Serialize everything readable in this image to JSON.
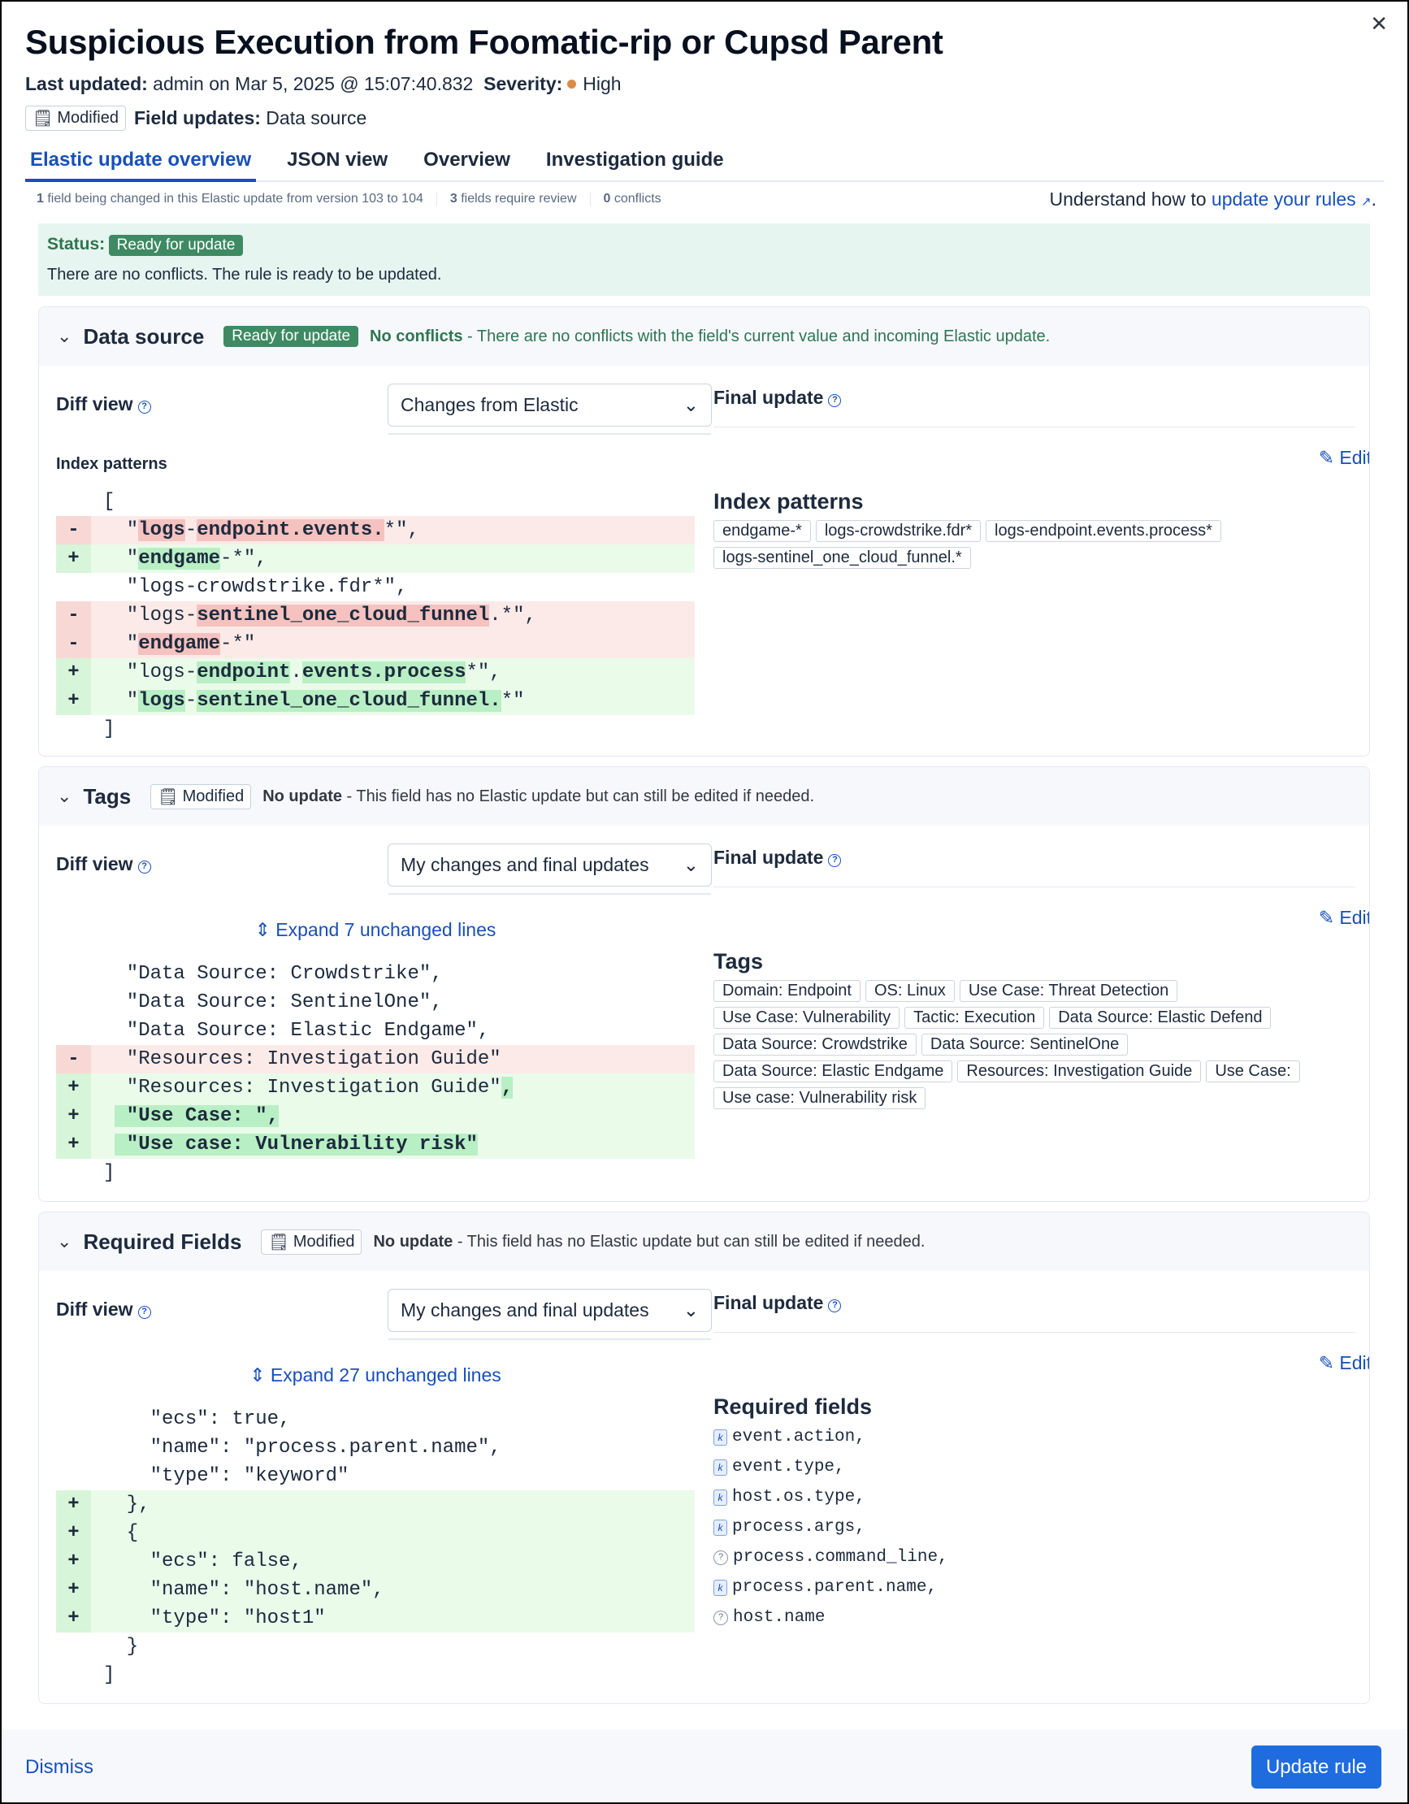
{
  "header": {
    "title": "Suspicious Execution from Foomatic-rip or Cupsd Parent",
    "last_updated_label": "Last updated:",
    "last_updated_value": "admin on Mar 5, 2025 @ 15:07:40.832",
    "severity_label": "Severity:",
    "severity_value": "High",
    "severity_color": "#da8b45",
    "modified_badge": "Modified",
    "field_updates_label": "Field updates:",
    "field_updates_value": "Data source"
  },
  "tabs": [
    {
      "label": "Elastic update overview",
      "active": true
    },
    {
      "label": "JSON view"
    },
    {
      "label": "Overview"
    },
    {
      "label": "Investigation guide"
    }
  ],
  "stats": {
    "changed_count": "1",
    "changed_text": " field being changed in this Elastic update from version 103 to 104",
    "review_count": "3",
    "review_text": " fields require review",
    "conflicts_count": "0",
    "conflicts_text": " conflicts",
    "learn_prefix": "Understand how to ",
    "learn_link": "update your rules"
  },
  "status": {
    "label": "Status:",
    "badge": "Ready for update",
    "message": "There are no conflicts. The rule is ready to be updated."
  },
  "panels": [
    {
      "name": "Data source",
      "badge": "Ready for update",
      "state": "No conflicts",
      "desc": " - There are no conflicts with the field's current value and incoming Elastic update.",
      "diff_label": "Diff view",
      "select": "Changes from Elastic",
      "final_label": "Final update",
      "edit": "Edit",
      "subtitle": "Index patterns",
      "right_title": "Index patterns",
      "lines": [
        {
          "s": "",
          "t": [
            [
              "[",
              ""
            ]
          ]
        },
        {
          "s": "-",
          "t": [
            [
              "  \"",
              ""
            ],
            [
              "logs",
              "d"
            ],
            [
              "-",
              ""
            ],
            [
              "endpoint.events.",
              "d"
            ],
            [
              "*\",",
              ""
            ]
          ]
        },
        {
          "s": "+",
          "t": [
            [
              "  \"",
              ""
            ],
            [
              "endgame",
              "a"
            ],
            [
              "-*\",",
              ""
            ]
          ]
        },
        {
          "s": "",
          "t": [
            [
              "  \"logs-crowdstrike.fdr*\",",
              ""
            ]
          ]
        },
        {
          "s": "-",
          "t": [
            [
              "  \"logs-",
              ""
            ],
            [
              "sentinel_one_cloud_funnel",
              "d"
            ],
            [
              ".*\",",
              ""
            ]
          ]
        },
        {
          "s": "-",
          "t": [
            [
              "  \"",
              ""
            ],
            [
              "endgame",
              "d"
            ],
            [
              "-*\"",
              ""
            ]
          ]
        },
        {
          "s": "+",
          "t": [
            [
              "  \"logs-",
              ""
            ],
            [
              "endpoint",
              "a"
            ],
            [
              ".",
              ""
            ],
            [
              "events.process",
              "a"
            ],
            [
              "*\",",
              ""
            ]
          ]
        },
        {
          "s": "+",
          "t": [
            [
              "  \"",
              ""
            ],
            [
              "logs",
              "a"
            ],
            [
              "-",
              ""
            ],
            [
              "sentinel_one_cloud_funnel.",
              "a"
            ],
            [
              "*\"",
              ""
            ]
          ]
        },
        {
          "s": "",
          "t": [
            [
              "]",
              ""
            ]
          ]
        }
      ],
      "values": [
        "endgame-*",
        "logs-crowdstrike.fdr*",
        "logs-endpoint.events.process*",
        "logs-sentinel_one_cloud_funnel.*"
      ]
    },
    {
      "name": "Tags",
      "modified": "Modified",
      "state": "No update",
      "desc": " - This field has no Elastic update but can still be edited if needed.",
      "diff_label": "Diff view",
      "select": "My changes and final updates",
      "final_label": "Final update",
      "edit": "Edit",
      "expand": "Expand 7 unchanged lines",
      "right_title": "Tags",
      "lines": [
        {
          "s": "",
          "t": [
            [
              "  \"Data Source: Crowdstrike\",",
              ""
            ]
          ]
        },
        {
          "s": "",
          "t": [
            [
              "  \"Data Source: SentinelOne\",",
              ""
            ]
          ]
        },
        {
          "s": "",
          "t": [
            [
              "  \"Data Source: Elastic Endgame\",",
              ""
            ]
          ]
        },
        {
          "s": "-",
          "t": [
            [
              "  \"Resources: Investigation Guide\"",
              ""
            ]
          ]
        },
        {
          "s": "+",
          "t": [
            [
              "  \"Resources: Investigation Guide\"",
              ""
            ],
            [
              ",",
              "a"
            ]
          ]
        },
        {
          "s": "+",
          "t": [
            [
              " ",
              ""
            ],
            [
              " \"Use Case: \",",
              "a"
            ]
          ]
        },
        {
          "s": "+",
          "t": [
            [
              " ",
              ""
            ],
            [
              " \"Use case: Vulnerability risk\"",
              "a"
            ]
          ]
        },
        {
          "s": "",
          "t": [
            [
              "]",
              ""
            ]
          ]
        }
      ],
      "values": [
        "Domain: Endpoint",
        "OS: Linux",
        "Use Case: Threat Detection",
        "Use Case: Vulnerability",
        "Tactic: Execution",
        "Data Source: Elastic Defend",
        "Data Source: Crowdstrike",
        "Data Source: SentinelOne",
        "Data Source: Elastic Endgame",
        "Resources: Investigation Guide",
        "Use Case: ",
        "Use case: Vulnerability risk"
      ]
    },
    {
      "name": "Required Fields",
      "modified": "Modified",
      "state": "No update",
      "desc": " - This field has no Elastic update but can still be edited if needed.",
      "diff_label": "Diff view",
      "select": "My changes and final updates",
      "final_label": "Final update",
      "edit": "Edit",
      "expand": "Expand 27 unchanged lines",
      "right_title": "Required fields",
      "lines": [
        {
          "s": "",
          "t": [
            [
              "    \"ecs\": true,",
              ""
            ]
          ]
        },
        {
          "s": "",
          "t": [
            [
              "    \"name\": \"process.parent.name\",",
              ""
            ]
          ]
        },
        {
          "s": "",
          "t": [
            [
              "    \"type\": \"keyword\"",
              ""
            ]
          ]
        },
        {
          "s": "+",
          "t": [
            [
              "  },",
              ""
            ]
          ]
        },
        {
          "s": "+",
          "t": [
            [
              "  {",
              ""
            ]
          ]
        },
        {
          "s": "+",
          "t": [
            [
              "    \"ecs\": false,",
              ""
            ]
          ]
        },
        {
          "s": "+",
          "t": [
            [
              "    \"name\": \"host.name\",",
              ""
            ]
          ]
        },
        {
          "s": "+",
          "t": [
            [
              "    \"type\": \"host1\"",
              ""
            ]
          ]
        },
        {
          "s": "",
          "t": [
            [
              "  }",
              ""
            ]
          ]
        },
        {
          "s": "",
          "t": [
            [
              "]",
              ""
            ]
          ]
        }
      ],
      "fields": [
        {
          "name": "event.action,",
          "icon": "keyword"
        },
        {
          "name": "event.type,",
          "icon": "keyword"
        },
        {
          "name": "host.os.type,",
          "icon": "keyword"
        },
        {
          "name": "process.args,",
          "icon": "keyword"
        },
        {
          "name": "process.command_line,",
          "icon": "unknown"
        },
        {
          "name": "process.parent.name,",
          "icon": "keyword"
        },
        {
          "name": "host.name",
          "icon": "unknown"
        }
      ]
    }
  ],
  "footer": {
    "dismiss": "Dismiss",
    "update": "Update rule"
  }
}
